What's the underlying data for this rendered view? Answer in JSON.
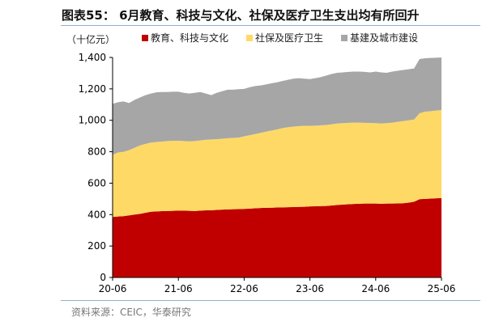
{
  "title": "图表55： 6月教育、科技与文化、社保及医疗卫生支出均有所回升",
  "source": "资料来源：CEIC，华泰研究",
  "chart_data": {
    "type": "area",
    "stacked": true,
    "unit_label": "（十亿元）",
    "x_start": "2020-06",
    "x_end": "2025-06",
    "frequency": "monthly",
    "x_ticks": [
      "20-06",
      "21-06",
      "22-06",
      "23-06",
      "24-06",
      "25-06"
    ],
    "ylim": [
      0,
      1400
    ],
    "y_ticks": [
      "0",
      "200",
      "400",
      "600",
      "800",
      "1,000",
      "1,200",
      "1,400"
    ],
    "y_tick_values": [
      0,
      200,
      400,
      600,
      800,
      1000,
      1200,
      1400
    ],
    "grid": false,
    "legend_position": "top",
    "series": [
      {
        "name": "教育、科技与文化",
        "color": "#c00000",
        "values": [
          385,
          388,
          390,
          395,
          400,
          405,
          412,
          418,
          420,
          422,
          423,
          424,
          425,
          425,
          424,
          423,
          425,
          427,
          428,
          430,
          432,
          433,
          434,
          435,
          436,
          438,
          440,
          442,
          443,
          444,
          445,
          446,
          447,
          448,
          449,
          450,
          452,
          453,
          454,
          455,
          458,
          461,
          464,
          466,
          468,
          469,
          470,
          470,
          470,
          469,
          470,
          470,
          471,
          472,
          476,
          482,
          498,
          500,
          502,
          504,
          505
        ]
      },
      {
        "name": "社保及医疗卫生",
        "color": "#ffd966",
        "values": [
          395,
          407,
          410,
          415,
          425,
          435,
          438,
          440,
          442,
          443,
          445,
          446,
          445,
          443,
          442,
          445,
          447,
          449,
          450,
          450,
          451,
          453,
          454,
          455,
          462,
          467,
          472,
          478,
          485,
          491,
          497,
          504,
          509,
          512,
          514,
          515,
          513,
          513,
          514,
          515,
          517,
          519,
          518,
          518,
          517,
          516,
          514,
          513,
          512,
          511,
          512,
          515,
          519,
          523,
          524,
          523,
          547,
          555,
          556,
          558,
          560
        ]
      },
      {
        "name": "基建及城市建设",
        "color": "#a6a6a6",
        "values": [
          325,
          320,
          320,
          300,
          305,
          305,
          310,
          312,
          316,
          315,
          312,
          312,
          312,
          307,
          304,
          307,
          308,
          294,
          282,
          295,
          302,
          309,
          307,
          308,
          302,
          305,
          306,
          302,
          300,
          300,
          300,
          300,
          302,
          305,
          305,
          300,
          297,
          302,
          307,
          315,
          320,
          322,
          323,
          324,
          325,
          325,
          324,
          322,
          328,
          325,
          320,
          325,
          325,
          325,
          325,
          325,
          345,
          340,
          339,
          336,
          335
        ]
      }
    ]
  }
}
